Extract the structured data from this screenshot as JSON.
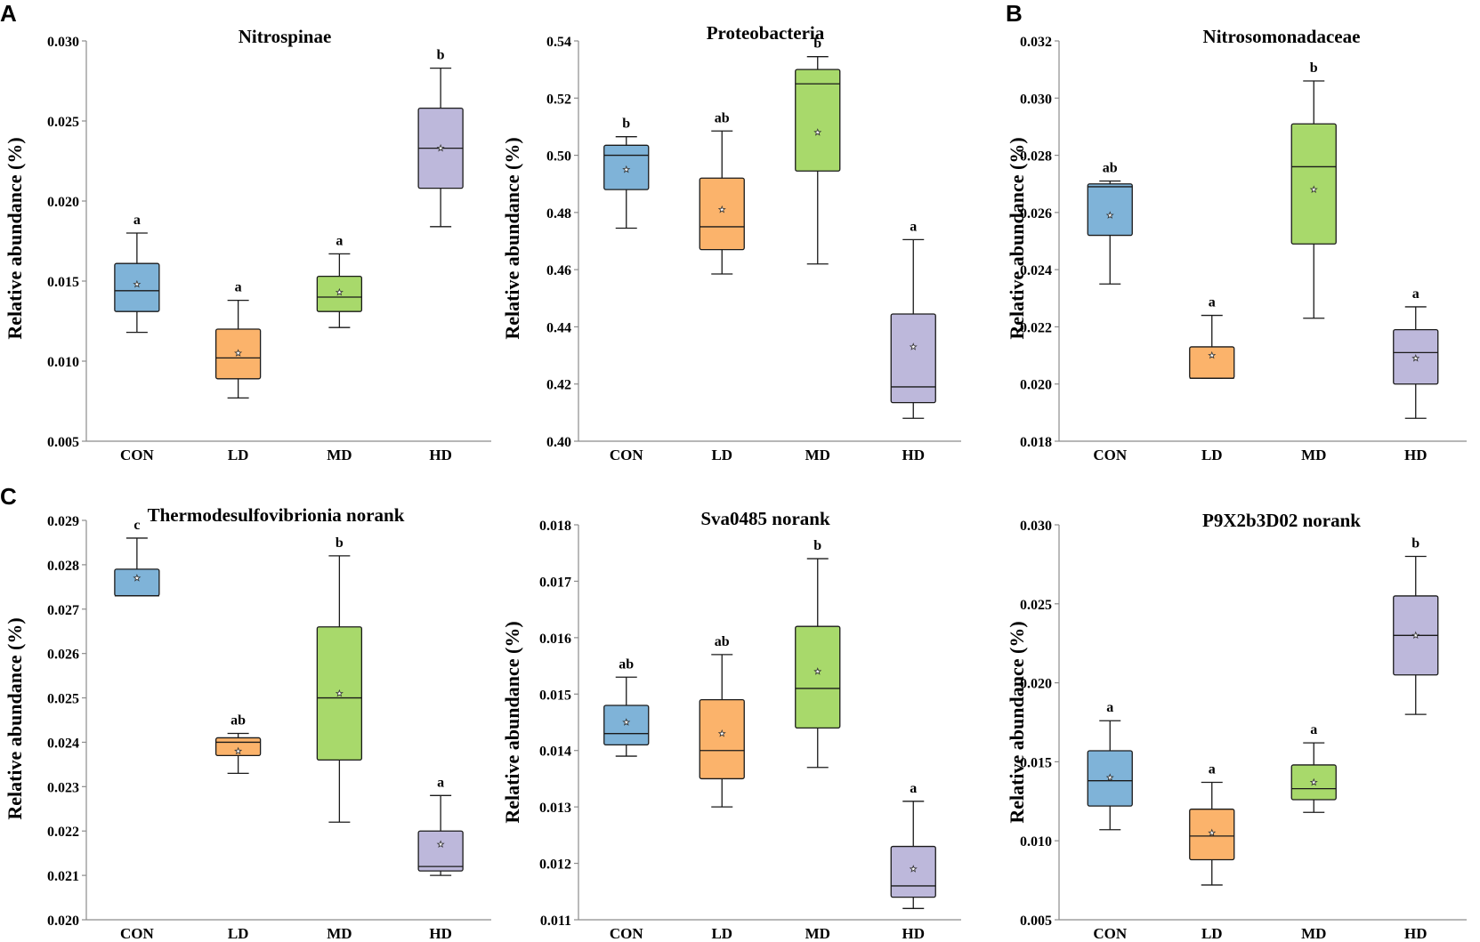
{
  "panel_labels": [
    "A",
    "B",
    "C"
  ],
  "colors": {
    "CON": "#7fb3d8",
    "LD": "#fbb36b",
    "MD": "#a8d96b",
    "HD": "#bdb8db"
  },
  "chart_data": [
    {
      "type": "box",
      "title": "Nitrospinae",
      "xlabel": "",
      "ylabel": "Relative abundance (%)",
      "ylim": [
        0.005,
        0.03
      ],
      "ytick_values": [
        0.005,
        0.01,
        0.015,
        0.02,
        0.025,
        0.03
      ],
      "yticks": [
        "0.005",
        "0.010",
        "0.015",
        "0.020",
        "0.025",
        "0.030"
      ],
      "categories": [
        "CON",
        "LD",
        "MD",
        "HD"
      ],
      "boxes": [
        {
          "group": "CON",
          "min": 0.0118,
          "q1": 0.0131,
          "median": 0.0144,
          "q3": 0.0161,
          "max": 0.018,
          "mean": 0.0148,
          "sig": "a"
        },
        {
          "group": "LD",
          "min": 0.0077,
          "q1": 0.0089,
          "median": 0.0102,
          "q3": 0.012,
          "max": 0.0138,
          "mean": 0.0105,
          "sig": "a"
        },
        {
          "group": "MD",
          "min": 0.0121,
          "q1": 0.0131,
          "median": 0.014,
          "q3": 0.0153,
          "max": 0.0167,
          "mean": 0.0143,
          "sig": "a"
        },
        {
          "group": "HD",
          "min": 0.0184,
          "q1": 0.0208,
          "median": 0.0233,
          "q3": 0.0258,
          "max": 0.0283,
          "mean": 0.0233,
          "sig": "b"
        }
      ]
    },
    {
      "type": "box",
      "title": "Proteobacteria",
      "xlabel": "",
      "ylabel": "Relative abundance (%)",
      "ylim": [
        0.4,
        0.54
      ],
      "ytick_values": [
        0.4,
        0.42,
        0.44,
        0.46,
        0.48,
        0.5,
        0.52,
        0.54
      ],
      "yticks": [
        "0.40",
        "0.42",
        "0.44",
        "0.46",
        "0.48",
        "0.50",
        "0.52",
        "0.54"
      ],
      "categories": [
        "CON",
        "LD",
        "MD",
        "HD"
      ],
      "boxes": [
        {
          "group": "CON",
          "min": 0.4745,
          "q1": 0.488,
          "median": 0.5,
          "q3": 0.5035,
          "max": 0.5065,
          "mean": 0.495,
          "sig": "b"
        },
        {
          "group": "LD",
          "min": 0.4585,
          "q1": 0.467,
          "median": 0.475,
          "q3": 0.492,
          "max": 0.5085,
          "mean": 0.481,
          "sig": "ab"
        },
        {
          "group": "MD",
          "min": 0.462,
          "q1": 0.4945,
          "median": 0.525,
          "q3": 0.53,
          "max": 0.5345,
          "mean": 0.508,
          "sig": "b"
        },
        {
          "group": "HD",
          "min": 0.408,
          "q1": 0.4135,
          "median": 0.419,
          "q3": 0.4445,
          "max": 0.4705,
          "mean": 0.433,
          "sig": "a"
        }
      ]
    },
    {
      "type": "box",
      "title": "Nitrosomonadaceae",
      "xlabel": "",
      "ylabel": "Relative abundance (%)",
      "ylim": [
        0.018,
        0.032
      ],
      "ytick_values": [
        0.018,
        0.02,
        0.022,
        0.024,
        0.026,
        0.028,
        0.03,
        0.032
      ],
      "yticks": [
        "0.018",
        "0.020",
        "0.022",
        "0.024",
        "0.026",
        "0.028",
        "0.030",
        "0.032"
      ],
      "categories": [
        "CON",
        "LD",
        "MD",
        "HD"
      ],
      "boxes": [
        {
          "group": "CON",
          "min": 0.0235,
          "q1": 0.0252,
          "median": 0.0269,
          "q3": 0.027,
          "max": 0.0271,
          "mean": 0.0259,
          "sig": "ab"
        },
        {
          "group": "LD",
          "min": 0.0202,
          "q1": 0.0202,
          "median": 0.0202,
          "q3": 0.0213,
          "max": 0.0224,
          "mean": 0.021,
          "sig": "a"
        },
        {
          "group": "MD",
          "min": 0.0223,
          "q1": 0.0249,
          "median": 0.0276,
          "q3": 0.0291,
          "max": 0.0306,
          "mean": 0.0268,
          "sig": "b"
        },
        {
          "group": "HD",
          "min": 0.0188,
          "q1": 0.02,
          "median": 0.0211,
          "q3": 0.0219,
          "max": 0.0227,
          "mean": 0.0209,
          "sig": "a"
        }
      ]
    },
    {
      "type": "box",
      "title": "Thermodesulfovibrionia norank",
      "xlabel": "",
      "ylabel": "Relative abundance (%)",
      "ylim": [
        0.02,
        0.029
      ],
      "ytick_values": [
        0.02,
        0.021,
        0.022,
        0.023,
        0.024,
        0.025,
        0.026,
        0.027,
        0.028,
        0.029
      ],
      "yticks": [
        "0.020",
        "0.021",
        "0.022",
        "0.023",
        "0.024",
        "0.025",
        "0.026",
        "0.027",
        "0.028",
        "0.029"
      ],
      "categories": [
        "CON",
        "LD",
        "MD",
        "HD"
      ],
      "boxes": [
        {
          "group": "CON",
          "min": 0.0273,
          "q1": 0.0273,
          "median": 0.0273,
          "q3": 0.0279,
          "max": 0.0286,
          "mean": 0.0277,
          "sig": "c"
        },
        {
          "group": "LD",
          "min": 0.0233,
          "q1": 0.0237,
          "median": 0.024,
          "q3": 0.0241,
          "max": 0.0242,
          "mean": 0.0238,
          "sig": "ab"
        },
        {
          "group": "MD",
          "min": 0.0222,
          "q1": 0.0236,
          "median": 0.025,
          "q3": 0.0266,
          "max": 0.0282,
          "mean": 0.0251,
          "sig": "b"
        },
        {
          "group": "HD",
          "min": 0.021,
          "q1": 0.0211,
          "median": 0.0212,
          "q3": 0.022,
          "max": 0.0228,
          "mean": 0.0217,
          "sig": "a"
        }
      ]
    },
    {
      "type": "box",
      "title": "Sva0485 norank",
      "xlabel": "",
      "ylabel": "Relative abundance (%)",
      "ylim": [
        0.011,
        0.018
      ],
      "ytick_values": [
        0.011,
        0.012,
        0.013,
        0.014,
        0.015,
        0.016,
        0.017,
        0.018
      ],
      "yticks": [
        "0.011",
        "0.012",
        "0.013",
        "0.014",
        "0.015",
        "0.016",
        "0.017",
        "0.018"
      ],
      "categories": [
        "CON",
        "LD",
        "MD",
        "HD"
      ],
      "boxes": [
        {
          "group": "CON",
          "min": 0.0139,
          "q1": 0.0141,
          "median": 0.0143,
          "q3": 0.0148,
          "max": 0.0153,
          "mean": 0.0145,
          "sig": "ab"
        },
        {
          "group": "LD",
          "min": 0.013,
          "q1": 0.0135,
          "median": 0.014,
          "q3": 0.0149,
          "max": 0.0157,
          "mean": 0.0143,
          "sig": "ab"
        },
        {
          "group": "MD",
          "min": 0.0137,
          "q1": 0.0144,
          "median": 0.0151,
          "q3": 0.0162,
          "max": 0.0174,
          "mean": 0.0154,
          "sig": "b"
        },
        {
          "group": "HD",
          "min": 0.0112,
          "q1": 0.0114,
          "median": 0.0116,
          "q3": 0.0123,
          "max": 0.0131,
          "mean": 0.0119,
          "sig": "a"
        }
      ]
    },
    {
      "type": "box",
      "title": "P9X2b3D02 norank",
      "xlabel": "",
      "ylabel": "Relative abundance (%)",
      "ylim": [
        0.005,
        0.03
      ],
      "ytick_values": [
        0.005,
        0.01,
        0.015,
        0.02,
        0.025,
        0.03
      ],
      "yticks": [
        "0.005",
        "0.010",
        "0.015",
        "0.020",
        "0.025",
        "0.030"
      ],
      "categories": [
        "CON",
        "LD",
        "MD",
        "HD"
      ],
      "boxes": [
        {
          "group": "CON",
          "min": 0.0107,
          "q1": 0.0122,
          "median": 0.0138,
          "q3": 0.0157,
          "max": 0.0176,
          "mean": 0.014,
          "sig": "a"
        },
        {
          "group": "LD",
          "min": 0.0072,
          "q1": 0.0088,
          "median": 0.0103,
          "q3": 0.012,
          "max": 0.0137,
          "mean": 0.0105,
          "sig": "a"
        },
        {
          "group": "MD",
          "min": 0.0118,
          "q1": 0.0126,
          "median": 0.0133,
          "q3": 0.0148,
          "max": 0.0162,
          "mean": 0.0137,
          "sig": "a"
        },
        {
          "group": "HD",
          "min": 0.018,
          "q1": 0.0205,
          "median": 0.023,
          "q3": 0.0255,
          "max": 0.028,
          "mean": 0.023,
          "sig": "b"
        }
      ]
    }
  ]
}
